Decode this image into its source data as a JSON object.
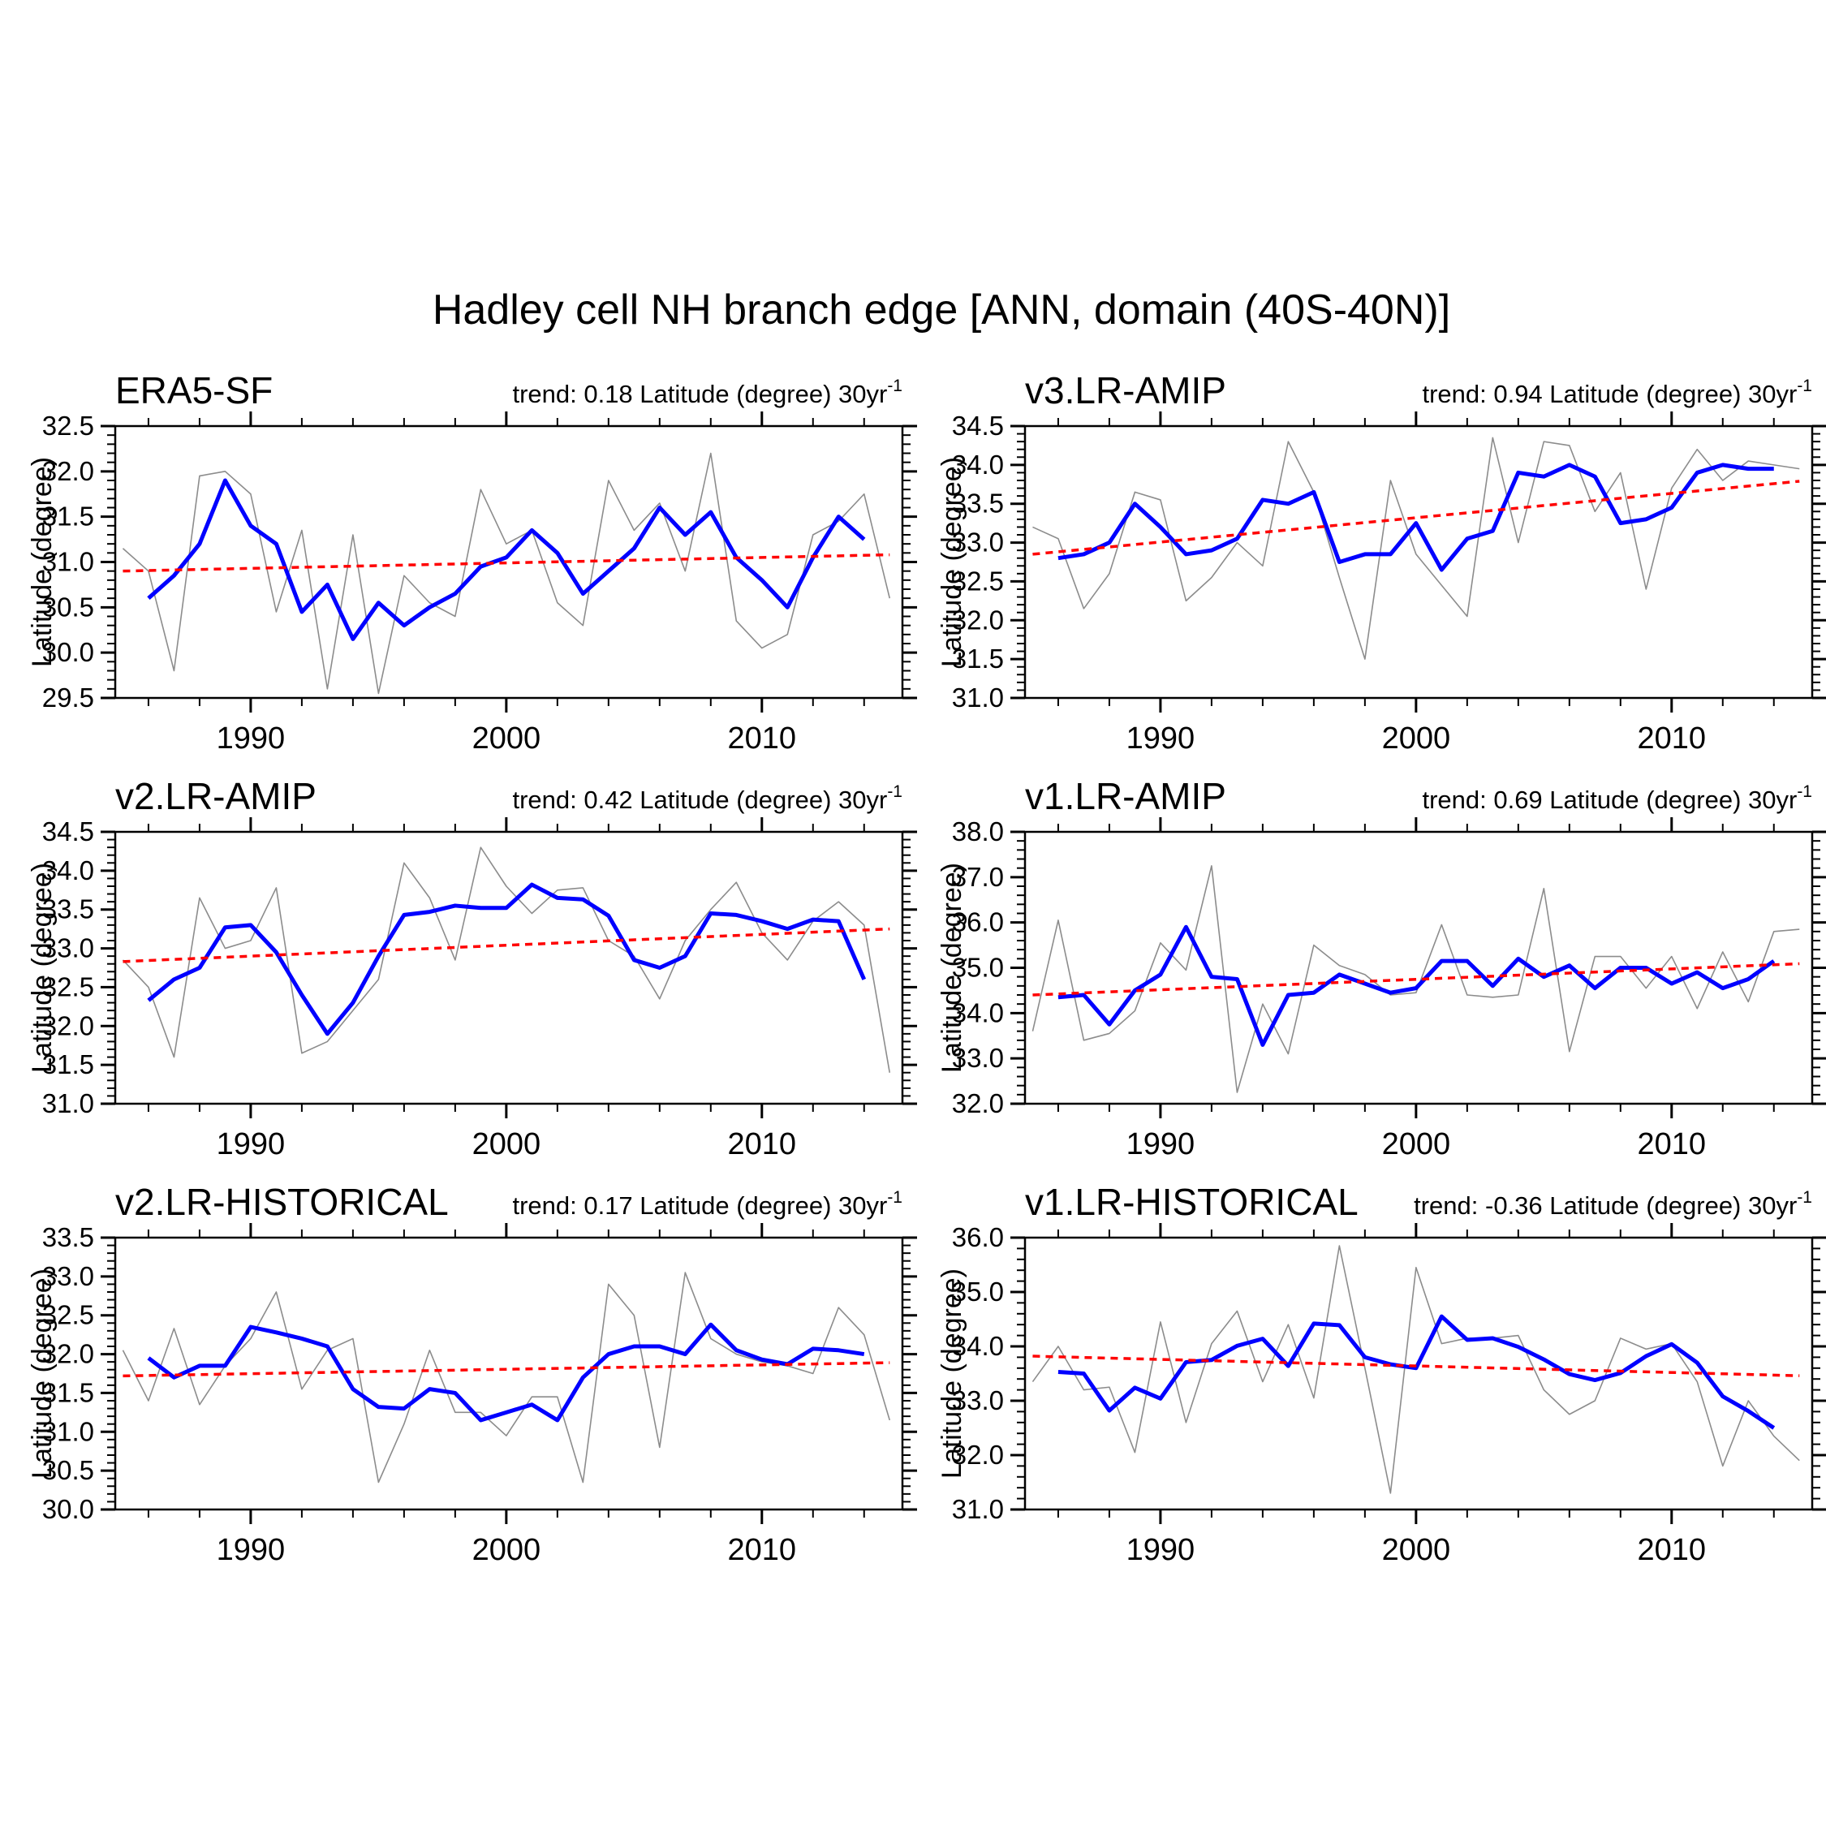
{
  "figure": {
    "title": "Hadley cell NH branch edge [ANN, domain (40S-40N)]",
    "background": "#FFFFFF",
    "frame_color": "#000000",
    "blue": "#0000FF",
    "red": "#FF0000",
    "gray": "#8C8C8C",
    "trend_sup": "-1"
  },
  "chart_data": [
    {
      "type": "line",
      "title": "ERA5-SF",
      "trend_label": "trend: 0.18 Latitude (degree) 30yr",
      "trend_value": 0.18,
      "ylabel": "Latitude (degree)",
      "ylim": [
        29.5,
        32.5
      ],
      "ytick_step": 0.5,
      "yminor_step": 0.1,
      "xlim": [
        1984.7,
        2015.5
      ],
      "xticks": [
        1990,
        2000,
        2010
      ],
      "xminor_step": 2,
      "legend": "off",
      "grid": "off",
      "series": [
        {
          "name": "annual",
          "role": "gray",
          "start_year": 1985,
          "values": [
            31.15,
            30.9,
            29.8,
            31.95,
            32.0,
            31.75,
            30.45,
            31.35,
            29.6,
            31.3,
            29.55,
            30.85,
            30.55,
            30.4,
            31.8,
            31.2,
            31.35,
            30.55,
            30.3,
            31.9,
            31.35,
            31.65,
            30.9,
            32.2,
            30.35,
            30.05,
            30.2,
            31.3,
            31.45,
            31.75,
            30.6
          ]
        },
        {
          "name": "smoothed",
          "role": "blue",
          "start_year": 1986,
          "values": [
            30.6,
            30.85,
            31.2,
            31.9,
            31.4,
            31.2,
            30.45,
            30.75,
            30.15,
            30.55,
            30.3,
            30.5,
            30.65,
            30.95,
            31.05,
            31.35,
            31.1,
            30.65,
            30.9,
            31.15,
            31.6,
            31.3,
            31.55,
            31.05,
            30.8,
            30.5,
            31.05,
            31.5,
            31.25
          ]
        },
        {
          "name": "trend",
          "role": "red-dashed",
          "x": [
            1985,
            2015
          ],
          "values": [
            30.9,
            31.08
          ]
        }
      ]
    },
    {
      "type": "line",
      "title": "v3.LR-AMIP",
      "trend_label": "trend: 0.94 Latitude (degree) 30yr",
      "trend_value": 0.94,
      "ylabel": "Latitude (degree)",
      "ylim": [
        31.0,
        34.5
      ],
      "ytick_step": 0.5,
      "yminor_step": 0.1,
      "xlim": [
        1984.7,
        2015.5
      ],
      "xticks": [
        1990,
        2000,
        2010
      ],
      "xminor_step": 2,
      "legend": "off",
      "grid": "off",
      "series": [
        {
          "name": "annual",
          "role": "gray",
          "start_year": 1985,
          "values": [
            33.2,
            33.05,
            32.15,
            32.6,
            33.65,
            33.55,
            32.25,
            32.55,
            33.0,
            32.7,
            34.3,
            33.65,
            32.55,
            31.5,
            33.8,
            32.85,
            32.45,
            32.05,
            34.35,
            33.0,
            34.3,
            34.25,
            33.4,
            33.9,
            32.4,
            33.7,
            34.2,
            33.8,
            34.05,
            34.0,
            33.95
          ]
        },
        {
          "name": "smoothed",
          "role": "blue",
          "start_year": 1986,
          "values": [
            32.8,
            32.85,
            33.0,
            33.5,
            33.2,
            32.85,
            32.9,
            33.05,
            33.55,
            33.5,
            33.65,
            32.75,
            32.85,
            32.85,
            33.25,
            32.65,
            33.05,
            33.15,
            33.9,
            33.85,
            34.0,
            33.85,
            33.25,
            33.3,
            33.45,
            33.9,
            34.0,
            33.95,
            33.95
          ]
        },
        {
          "name": "trend",
          "role": "red-dashed",
          "x": [
            1985,
            2015
          ],
          "values": [
            32.85,
            33.79
          ]
        }
      ]
    },
    {
      "type": "line",
      "title": "v2.LR-AMIP",
      "trend_label": "trend: 0.42 Latitude (degree) 30yr",
      "trend_value": 0.42,
      "ylabel": "Latitude (degree)",
      "ylim": [
        31.0,
        34.5
      ],
      "ytick_step": 0.5,
      "yminor_step": 0.1,
      "xlim": [
        1984.7,
        2015.5
      ],
      "xticks": [
        1990,
        2000,
        2010
      ],
      "xminor_step": 2,
      "legend": "off",
      "grid": "off",
      "series": [
        {
          "name": "annual",
          "role": "gray",
          "start_year": 1985,
          "values": [
            32.85,
            32.5,
            31.6,
            33.65,
            33.0,
            33.1,
            33.78,
            31.65,
            31.8,
            32.2,
            32.6,
            34.1,
            33.65,
            32.85,
            34.3,
            33.8,
            33.45,
            33.75,
            33.78,
            33.1,
            32.9,
            32.35,
            33.1,
            33.5,
            33.85,
            33.2,
            32.85,
            33.35,
            33.6,
            33.3,
            31.4
          ]
        },
        {
          "name": "smoothed",
          "role": "blue",
          "start_year": 1986,
          "values": [
            32.33,
            32.6,
            32.75,
            33.27,
            33.3,
            32.95,
            32.4,
            31.9,
            32.3,
            32.9,
            33.43,
            33.47,
            33.55,
            33.52,
            33.52,
            33.82,
            33.65,
            33.63,
            33.42,
            32.85,
            32.75,
            32.9,
            33.45,
            33.43,
            33.35,
            33.25,
            33.37,
            33.35,
            32.6
          ]
        },
        {
          "name": "trend",
          "role": "red-dashed",
          "x": [
            1985,
            2015
          ],
          "values": [
            32.83,
            33.25
          ]
        }
      ]
    },
    {
      "type": "line",
      "title": "v1.LR-AMIP",
      "trend_label": "trend: 0.69 Latitude (degree) 30yr",
      "trend_value": 0.69,
      "ylabel": "Latitude (degree)",
      "ylim": [
        32.0,
        38.0
      ],
      "ytick_step": 1.0,
      "yminor_step": 0.2,
      "xlim": [
        1984.7,
        2015.5
      ],
      "xticks": [
        1990,
        2000,
        2010
      ],
      "xminor_step": 2,
      "legend": "off",
      "grid": "off",
      "series": [
        {
          "name": "annual",
          "role": "gray",
          "start_year": 1985,
          "values": [
            33.6,
            36.05,
            33.4,
            33.55,
            34.05,
            35.55,
            34.95,
            37.25,
            32.25,
            34.2,
            33.1,
            35.5,
            35.05,
            34.85,
            34.4,
            34.45,
            35.95,
            34.4,
            34.35,
            34.4,
            36.75,
            33.15,
            35.25,
            35.25,
            34.55,
            35.25,
            34.1,
            35.35,
            34.25,
            35.8,
            35.85
          ]
        },
        {
          "name": "smoothed",
          "role": "blue",
          "start_year": 1986,
          "values": [
            34.35,
            34.4,
            33.75,
            34.5,
            34.85,
            35.9,
            34.8,
            34.75,
            33.3,
            34.4,
            34.45,
            34.85,
            34.65,
            34.45,
            34.55,
            35.15,
            35.15,
            34.6,
            35.2,
            34.8,
            35.05,
            34.55,
            35.0,
            35.0,
            34.65,
            34.9,
            34.55,
            34.75,
            35.15
          ]
        },
        {
          "name": "trend",
          "role": "red-dashed",
          "x": [
            1985,
            2015
          ],
          "values": [
            34.4,
            35.09
          ]
        }
      ]
    },
    {
      "type": "line",
      "title": "v2.LR-HISTORICAL",
      "trend_label": "trend: 0.17 Latitude (degree) 30yr",
      "trend_value": 0.17,
      "ylabel": "Latitude (degree)",
      "ylim": [
        30.0,
        33.5
      ],
      "ytick_step": 0.5,
      "yminor_step": 0.1,
      "xlim": [
        1984.7,
        2015.5
      ],
      "xticks": [
        1990,
        2000,
        2010
      ],
      "xminor_step": 2,
      "legend": "off",
      "grid": "off",
      "series": [
        {
          "name": "annual",
          "role": "gray",
          "start_year": 1985,
          "values": [
            32.05,
            31.4,
            32.33,
            31.35,
            31.85,
            32.2,
            32.8,
            31.55,
            32.05,
            32.2,
            30.35,
            31.1,
            32.05,
            31.25,
            31.25,
            30.95,
            31.45,
            31.45,
            30.35,
            32.9,
            32.5,
            30.8,
            33.05,
            32.2,
            32.0,
            31.9,
            31.85,
            31.75,
            32.6,
            32.25,
            31.15
          ]
        },
        {
          "name": "smoothed",
          "role": "blue",
          "start_year": 1986,
          "values": [
            31.95,
            31.7,
            31.85,
            31.85,
            32.35,
            32.28,
            32.2,
            32.1,
            31.55,
            31.32,
            31.3,
            31.55,
            31.5,
            31.15,
            31.25,
            31.35,
            31.15,
            31.7,
            32.0,
            32.1,
            32.1,
            32.0,
            32.38,
            32.05,
            31.93,
            31.87,
            32.07,
            32.05,
            32.0
          ]
        },
        {
          "name": "trend",
          "role": "red-dashed",
          "x": [
            1985,
            2015
          ],
          "values": [
            31.72,
            31.89
          ]
        }
      ]
    },
    {
      "type": "line",
      "title": "v1.LR-HISTORICAL",
      "trend_label": "trend: -0.36 Latitude (degree) 30yr",
      "trend_value": -0.36,
      "ylabel": "Latitude (degree)",
      "ylim": [
        31.0,
        36.0
      ],
      "ytick_step": 1.0,
      "yminor_step": 0.2,
      "xlim": [
        1984.7,
        2015.5
      ],
      "xticks": [
        1990,
        2000,
        2010
      ],
      "xminor_step": 2,
      "legend": "off",
      "grid": "off",
      "series": [
        {
          "name": "annual",
          "role": "gray",
          "start_year": 1985,
          "values": [
            33.35,
            34.0,
            33.2,
            33.25,
            32.05,
            34.45,
            32.6,
            34.05,
            34.65,
            33.35,
            34.4,
            33.05,
            35.85,
            33.6,
            31.3,
            35.45,
            34.05,
            34.15,
            34.15,
            34.2,
            33.2,
            32.75,
            33.0,
            34.15,
            33.95,
            34.05,
            33.35,
            31.8,
            33.0,
            32.35,
            31.9
          ]
        },
        {
          "name": "smoothed",
          "role": "blue",
          "start_year": 1986,
          "values": [
            33.53,
            33.5,
            32.82,
            33.24,
            33.04,
            33.71,
            33.75,
            34.01,
            34.14,
            33.64,
            34.42,
            34.39,
            33.8,
            33.67,
            33.6,
            34.55,
            34.12,
            34.15,
            33.99,
            33.76,
            33.49,
            33.38,
            33.51,
            33.82,
            34.04,
            33.7,
            33.08,
            32.81,
            32.5
          ]
        },
        {
          "name": "trend",
          "role": "red-dashed",
          "x": [
            1985,
            2015
          ],
          "values": [
            33.82,
            33.46
          ]
        }
      ]
    }
  ]
}
